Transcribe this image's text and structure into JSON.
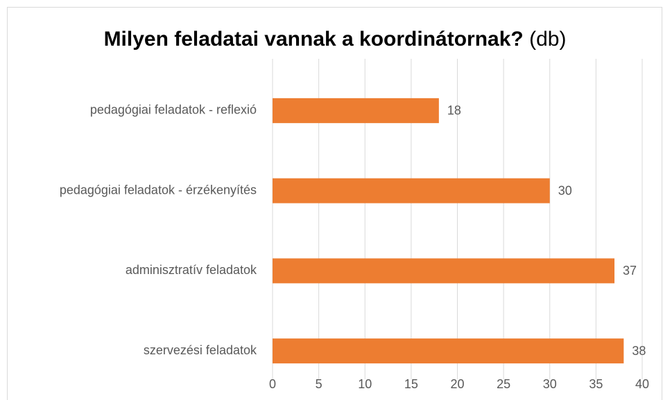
{
  "chart_data": {
    "type": "bar",
    "orientation": "horizontal",
    "title": {
      "main": "Milyen feladatai vannak a koordinátornak?",
      "unit": "(db)"
    },
    "categories": [
      "pedagógiai feladatok - reflexió",
      "pedagógiai feladatok - érzékenyítés",
      "adminisztratív feladatok",
      "szervezési feladatok"
    ],
    "values": [
      18,
      30,
      37,
      38
    ],
    "color": "#ed7d31",
    "xlim": [
      0,
      40
    ],
    "xticks": [
      0,
      5,
      10,
      15,
      20,
      25,
      30,
      35,
      40
    ],
    "grid": true
  }
}
